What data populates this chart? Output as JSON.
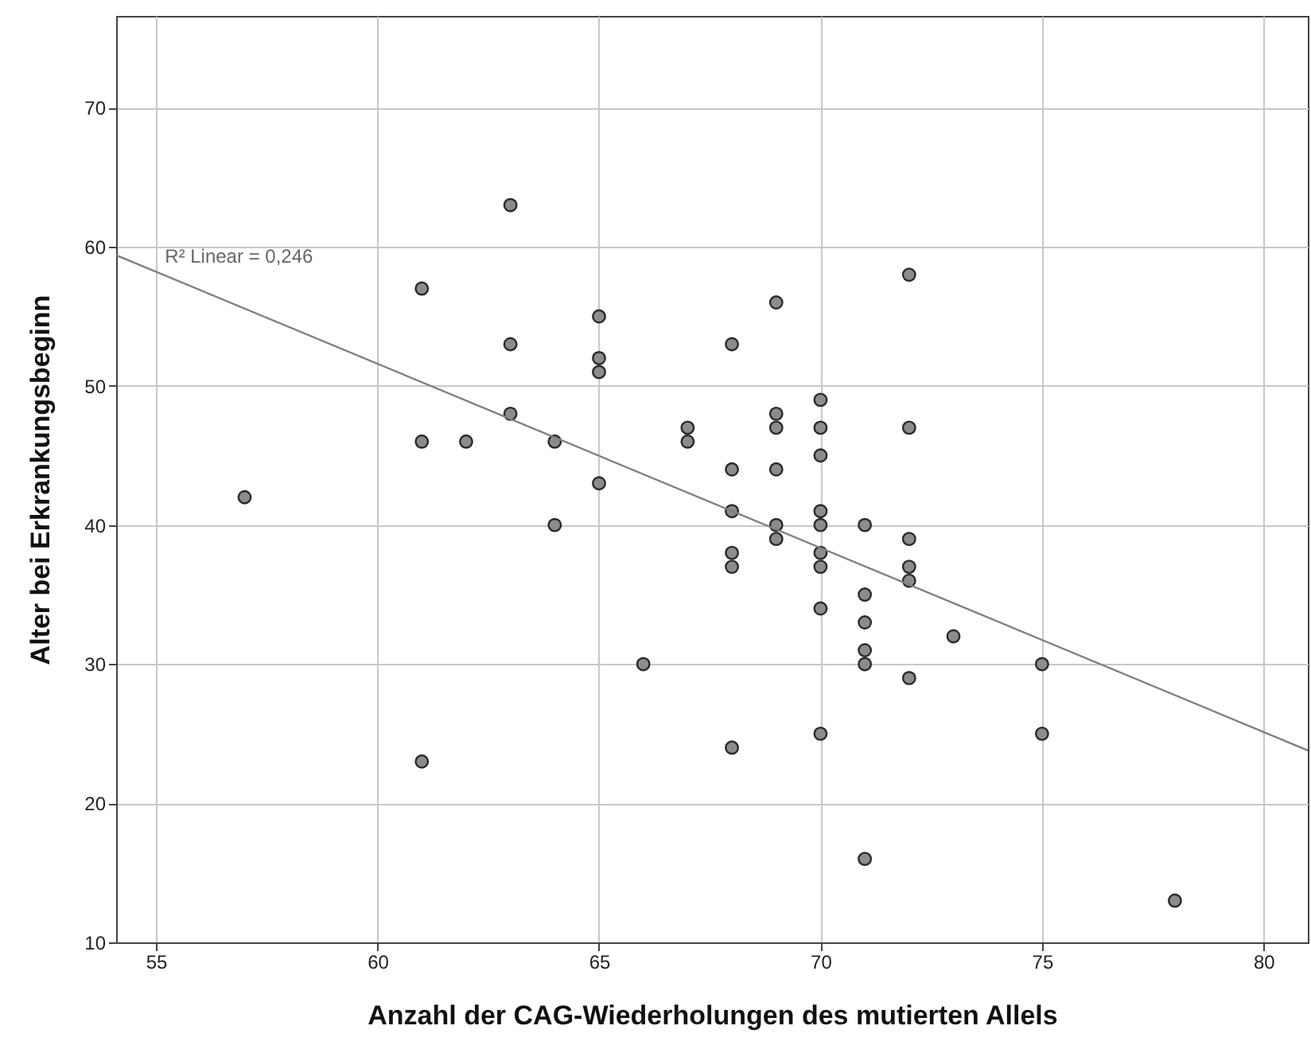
{
  "chart_data": {
    "type": "scatter",
    "xlabel": "Anzahl der CAG-Wiederholungen des mutierten Allels",
    "ylabel": "Alter bei Erkrankungsbeginn",
    "xlim": [
      54.1,
      81
    ],
    "xticks": [
      55,
      60,
      65,
      70,
      75,
      80
    ],
    "ylim": [
      10,
      76.6
    ],
    "yticks": [
      10,
      20,
      30,
      40,
      50,
      60,
      70
    ],
    "grid": true,
    "annotations": [
      {
        "text": "R² Linear = 0,246",
        "x": 55.2,
        "y": 58.5
      }
    ],
    "series": [
      {
        "marker": "circle",
        "color": "#8c8c8c",
        "x": [
          57,
          61,
          61,
          61,
          62,
          63,
          63,
          63,
          64,
          64,
          65,
          65,
          65,
          65,
          66,
          67,
          67,
          68,
          68,
          68,
          68,
          68,
          68,
          69,
          69,
          69,
          69,
          69,
          69,
          70,
          70,
          70,
          70,
          70,
          70,
          70,
          70,
          70,
          71,
          71,
          71,
          71,
          71,
          71,
          72,
          72,
          72,
          72,
          72,
          72,
          73,
          75,
          75,
          78
        ],
        "values": [
          42,
          57,
          46,
          23,
          46,
          63,
          53,
          48,
          46,
          40,
          55,
          52,
          51,
          43,
          30,
          47,
          46,
          53,
          44,
          41,
          38,
          37,
          24,
          56,
          48,
          47,
          44,
          40,
          39,
          49,
          47,
          45,
          41,
          40,
          38,
          37,
          34,
          25,
          40,
          35,
          33,
          31,
          30,
          16,
          58,
          47,
          39,
          37,
          36,
          29,
          32,
          30,
          25,
          13
        ]
      },
      {
        "type": "line",
        "color": "#808080",
        "x": [
          54.1,
          81
        ],
        "values": [
          59.4,
          23.8
        ]
      }
    ]
  }
}
